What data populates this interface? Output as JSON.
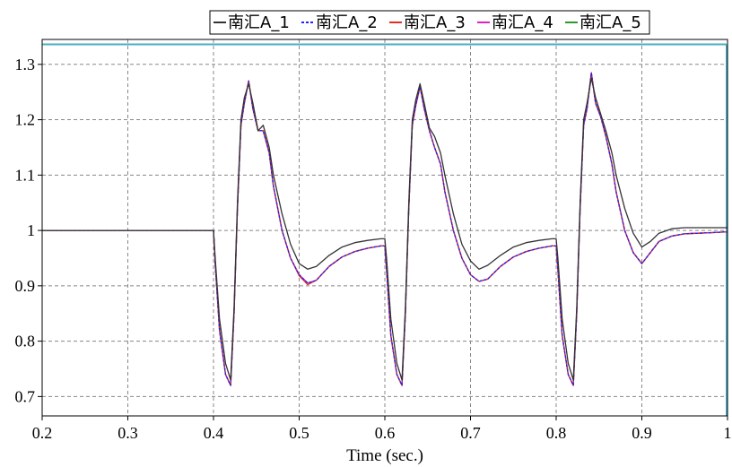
{
  "chart_data": {
    "type": "line",
    "xlabel": "Time (sec.)",
    "ylabel": "",
    "xlim": [
      0.2,
      1.0
    ],
    "ylim": [
      0.665,
      1.345
    ],
    "xticks": [
      0.2,
      0.3,
      0.4,
      0.5,
      0.6,
      0.7,
      0.8,
      0.9,
      1.0
    ],
    "xtick_labels": [
      "0.2",
      "0.3",
      "0.4",
      "0.5",
      "0.6",
      "0.7",
      "0.8",
      "0.9",
      "1"
    ],
    "yticks": [
      0.7,
      0.8,
      0.9,
      1.0,
      1.1,
      1.2,
      1.3
    ],
    "ytick_labels": [
      "0.7",
      "0.8",
      "0.9",
      "1",
      "1.1",
      "1.2",
      "1.3"
    ],
    "grid": true,
    "legend_position": "top",
    "reference_line": {
      "y": 1.336,
      "color": "#4aaec6"
    },
    "series": [
      {
        "name": "南汇A_1",
        "color": "#333333",
        "x": [
          0.2,
          0.4,
          0.402,
          0.407,
          0.414,
          0.42,
          0.424,
          0.428,
          0.432,
          0.436,
          0.441,
          0.446,
          0.452,
          0.458,
          0.465,
          0.47,
          0.48,
          0.49,
          0.5,
          0.51,
          0.52,
          0.535,
          0.55,
          0.565,
          0.58,
          0.595,
          0.6,
          0.602,
          0.607,
          0.614,
          0.62,
          0.624,
          0.628,
          0.632,
          0.636,
          0.641,
          0.646,
          0.652,
          0.658,
          0.665,
          0.67,
          0.68,
          0.69,
          0.7,
          0.71,
          0.72,
          0.735,
          0.75,
          0.765,
          0.78,
          0.795,
          0.8,
          0.802,
          0.807,
          0.814,
          0.82,
          0.824,
          0.828,
          0.832,
          0.836,
          0.841,
          0.846,
          0.852,
          0.858,
          0.865,
          0.87,
          0.88,
          0.89,
          0.9,
          0.91,
          0.92,
          0.935,
          0.95,
          0.965,
          0.98,
          0.995,
          1.0
        ],
        "y": [
          1.0,
          1.0,
          0.95,
          0.84,
          0.76,
          0.73,
          0.86,
          1.05,
          1.2,
          1.24,
          1.265,
          1.23,
          1.18,
          1.19,
          1.15,
          1.1,
          1.03,
          0.975,
          0.94,
          0.93,
          0.935,
          0.955,
          0.97,
          0.978,
          0.982,
          0.985,
          0.985,
          0.95,
          0.84,
          0.76,
          0.73,
          0.86,
          1.05,
          1.2,
          1.235,
          1.265,
          1.23,
          1.185,
          1.17,
          1.14,
          1.1,
          1.03,
          0.975,
          0.945,
          0.93,
          0.937,
          0.955,
          0.97,
          0.978,
          0.982,
          0.985,
          0.985,
          0.95,
          0.84,
          0.76,
          0.73,
          0.86,
          1.05,
          1.2,
          1.23,
          1.275,
          1.24,
          1.21,
          1.18,
          1.14,
          1.1,
          1.04,
          0.995,
          0.97,
          0.98,
          0.995,
          1.003,
          1.005,
          1.005,
          1.005,
          1.005,
          1.005
        ]
      },
      {
        "name": "南汇A_2",
        "color": "#2222ff",
        "x": [
          0.2,
          0.4,
          0.402,
          0.407,
          0.414,
          0.42,
          0.424,
          0.428,
          0.432,
          0.436,
          0.441,
          0.446,
          0.452,
          0.458,
          0.465,
          0.47,
          0.48,
          0.49,
          0.5,
          0.51,
          0.52,
          0.535,
          0.55,
          0.565,
          0.58,
          0.595,
          0.6,
          0.602,
          0.607,
          0.614,
          0.62,
          0.624,
          0.628,
          0.632,
          0.636,
          0.641,
          0.646,
          0.652,
          0.658,
          0.665,
          0.67,
          0.68,
          0.69,
          0.7,
          0.71,
          0.72,
          0.735,
          0.75,
          0.765,
          0.78,
          0.795,
          0.8,
          0.802,
          0.807,
          0.814,
          0.82,
          0.824,
          0.828,
          0.832,
          0.836,
          0.841,
          0.846,
          0.852,
          0.858,
          0.865,
          0.87,
          0.88,
          0.89,
          0.9,
          0.91,
          0.92,
          0.935,
          0.95,
          0.965,
          0.98,
          0.995,
          1.0
        ],
        "y": [
          1.0,
          1.0,
          0.94,
          0.82,
          0.74,
          0.72,
          0.85,
          1.04,
          1.19,
          1.23,
          1.27,
          1.22,
          1.18,
          1.18,
          1.14,
          1.08,
          1.0,
          0.95,
          0.92,
          0.905,
          0.91,
          0.935,
          0.952,
          0.962,
          0.968,
          0.972,
          0.972,
          0.93,
          0.81,
          0.74,
          0.72,
          0.85,
          1.04,
          1.19,
          1.225,
          1.26,
          1.22,
          1.18,
          1.15,
          1.12,
          1.07,
          1.0,
          0.95,
          0.92,
          0.908,
          0.912,
          0.935,
          0.952,
          0.962,
          0.968,
          0.972,
          0.972,
          0.93,
          0.81,
          0.74,
          0.72,
          0.85,
          1.04,
          1.19,
          1.22,
          1.285,
          1.23,
          1.205,
          1.17,
          1.12,
          1.07,
          1.0,
          0.96,
          0.94,
          0.96,
          0.98,
          0.99,
          0.994,
          0.995,
          0.996,
          0.997,
          0.997
        ]
      },
      {
        "name": "南汇A_3",
        "color": "#e03020",
        "x": [
          0.2,
          0.4,
          0.402,
          0.407,
          0.414,
          0.42,
          0.424,
          0.428,
          0.432,
          0.436,
          0.441,
          0.446,
          0.452,
          0.458,
          0.465,
          0.47,
          0.48,
          0.49,
          0.5,
          0.51,
          0.52,
          0.535,
          0.55,
          0.565,
          0.58,
          0.595,
          0.6,
          0.602,
          0.607,
          0.614,
          0.62,
          0.624,
          0.628,
          0.632,
          0.636,
          0.641,
          0.646,
          0.652,
          0.658,
          0.665,
          0.67,
          0.68,
          0.69,
          0.7,
          0.71,
          0.72,
          0.735,
          0.75,
          0.765,
          0.78,
          0.795,
          0.8,
          0.802,
          0.807,
          0.814,
          0.82,
          0.824,
          0.828,
          0.832,
          0.836,
          0.841,
          0.846,
          0.852,
          0.858,
          0.865,
          0.87,
          0.88,
          0.89,
          0.9,
          0.91,
          0.92,
          0.935,
          0.95,
          0.965,
          0.98,
          0.995,
          1.0
        ],
        "y": [
          1.0,
          1.0,
          0.94,
          0.82,
          0.74,
          0.72,
          0.85,
          1.04,
          1.19,
          1.23,
          1.27,
          1.22,
          1.18,
          1.18,
          1.14,
          1.08,
          1.0,
          0.95,
          0.918,
          0.902,
          0.91,
          0.935,
          0.952,
          0.962,
          0.968,
          0.972,
          0.972,
          0.93,
          0.81,
          0.74,
          0.72,
          0.85,
          1.04,
          1.19,
          1.225,
          1.26,
          1.22,
          1.18,
          1.15,
          1.12,
          1.07,
          1.0,
          0.95,
          0.92,
          0.908,
          0.912,
          0.935,
          0.952,
          0.962,
          0.968,
          0.972,
          0.972,
          0.93,
          0.81,
          0.74,
          0.72,
          0.85,
          1.04,
          1.19,
          1.22,
          1.285,
          1.23,
          1.205,
          1.17,
          1.12,
          1.07,
          1.0,
          0.96,
          0.94,
          0.96,
          0.98,
          0.99,
          0.994,
          0.995,
          0.996,
          0.997,
          0.997
        ]
      },
      {
        "name": "南汇A_4",
        "color": "#e020c0",
        "x": [
          0.2,
          0.4,
          0.402,
          0.407,
          0.414,
          0.42,
          0.424,
          0.428,
          0.432,
          0.436,
          0.441,
          0.446,
          0.452,
          0.458,
          0.465,
          0.47,
          0.48,
          0.49,
          0.5,
          0.51,
          0.52,
          0.535,
          0.55,
          0.565,
          0.58,
          0.595,
          0.6,
          0.602,
          0.607,
          0.614,
          0.62,
          0.624,
          0.628,
          0.632,
          0.636,
          0.641,
          0.646,
          0.652,
          0.658,
          0.665,
          0.67,
          0.68,
          0.69,
          0.7,
          0.71,
          0.72,
          0.735,
          0.75,
          0.765,
          0.78,
          0.795,
          0.8,
          0.802,
          0.807,
          0.814,
          0.82,
          0.824,
          0.828,
          0.832,
          0.836,
          0.841,
          0.846,
          0.852,
          0.858,
          0.865,
          0.87,
          0.88,
          0.89,
          0.9,
          0.91,
          0.92,
          0.935,
          0.95,
          0.965,
          0.98,
          0.995,
          1.0
        ],
        "y": [
          1.0,
          1.0,
          0.94,
          0.82,
          0.74,
          0.72,
          0.85,
          1.04,
          1.19,
          1.23,
          1.27,
          1.22,
          1.18,
          1.18,
          1.14,
          1.08,
          1.0,
          0.95,
          0.92,
          0.905,
          0.91,
          0.935,
          0.952,
          0.962,
          0.968,
          0.972,
          0.972,
          0.93,
          0.81,
          0.74,
          0.72,
          0.85,
          1.04,
          1.19,
          1.225,
          1.26,
          1.22,
          1.18,
          1.15,
          1.12,
          1.07,
          1.0,
          0.95,
          0.92,
          0.908,
          0.912,
          0.935,
          0.952,
          0.962,
          0.968,
          0.972,
          0.972,
          0.93,
          0.81,
          0.74,
          0.72,
          0.85,
          1.04,
          1.19,
          1.22,
          1.285,
          1.23,
          1.205,
          1.17,
          1.12,
          1.07,
          1.0,
          0.96,
          0.94,
          0.96,
          0.98,
          0.99,
          0.994,
          0.995,
          0.996,
          0.997,
          0.997
        ]
      },
      {
        "name": "南汇A_5",
        "color": "#2a9a2a",
        "x": [
          0.2,
          0.4,
          0.402,
          0.407,
          0.414,
          0.42,
          0.424,
          0.428,
          0.432,
          0.436,
          0.441,
          0.446,
          0.452,
          0.458,
          0.465,
          0.47,
          0.48,
          0.49,
          0.5,
          0.51,
          0.52,
          0.535,
          0.55,
          0.565,
          0.58,
          0.595,
          0.6,
          0.602,
          0.607,
          0.614,
          0.62,
          0.624,
          0.628,
          0.632,
          0.636,
          0.641,
          0.646,
          0.652,
          0.658,
          0.665,
          0.67,
          0.68,
          0.69,
          0.7,
          0.71,
          0.72,
          0.735,
          0.75,
          0.765,
          0.78,
          0.795,
          0.8,
          0.802,
          0.807,
          0.814,
          0.82,
          0.824,
          0.828,
          0.832,
          0.836,
          0.841,
          0.846,
          0.852,
          0.858,
          0.865,
          0.87,
          0.88,
          0.89,
          0.9,
          0.91,
          0.92,
          0.935,
          0.95,
          0.965,
          0.98,
          0.995,
          1.0
        ],
        "y": [
          1.0,
          1.0,
          0.94,
          0.82,
          0.74,
          0.72,
          0.85,
          1.04,
          1.19,
          1.23,
          1.27,
          1.22,
          1.18,
          1.18,
          1.14,
          1.08,
          1.0,
          0.95,
          0.92,
          0.905,
          0.91,
          0.935,
          0.952,
          0.962,
          0.968,
          0.972,
          0.972,
          0.93,
          0.81,
          0.74,
          0.72,
          0.85,
          1.04,
          1.19,
          1.225,
          1.26,
          1.22,
          1.18,
          1.15,
          1.12,
          1.07,
          1.0,
          0.95,
          0.92,
          0.908,
          0.912,
          0.935,
          0.952,
          0.962,
          0.968,
          0.972,
          0.972,
          0.93,
          0.81,
          0.74,
          0.72,
          0.85,
          1.04,
          1.19,
          1.22,
          1.285,
          1.23,
          1.205,
          1.17,
          1.12,
          1.07,
          1.0,
          0.96,
          0.94,
          0.96,
          0.98,
          0.99,
          0.994,
          0.995,
          0.996,
          0.997,
          0.997
        ]
      }
    ]
  }
}
